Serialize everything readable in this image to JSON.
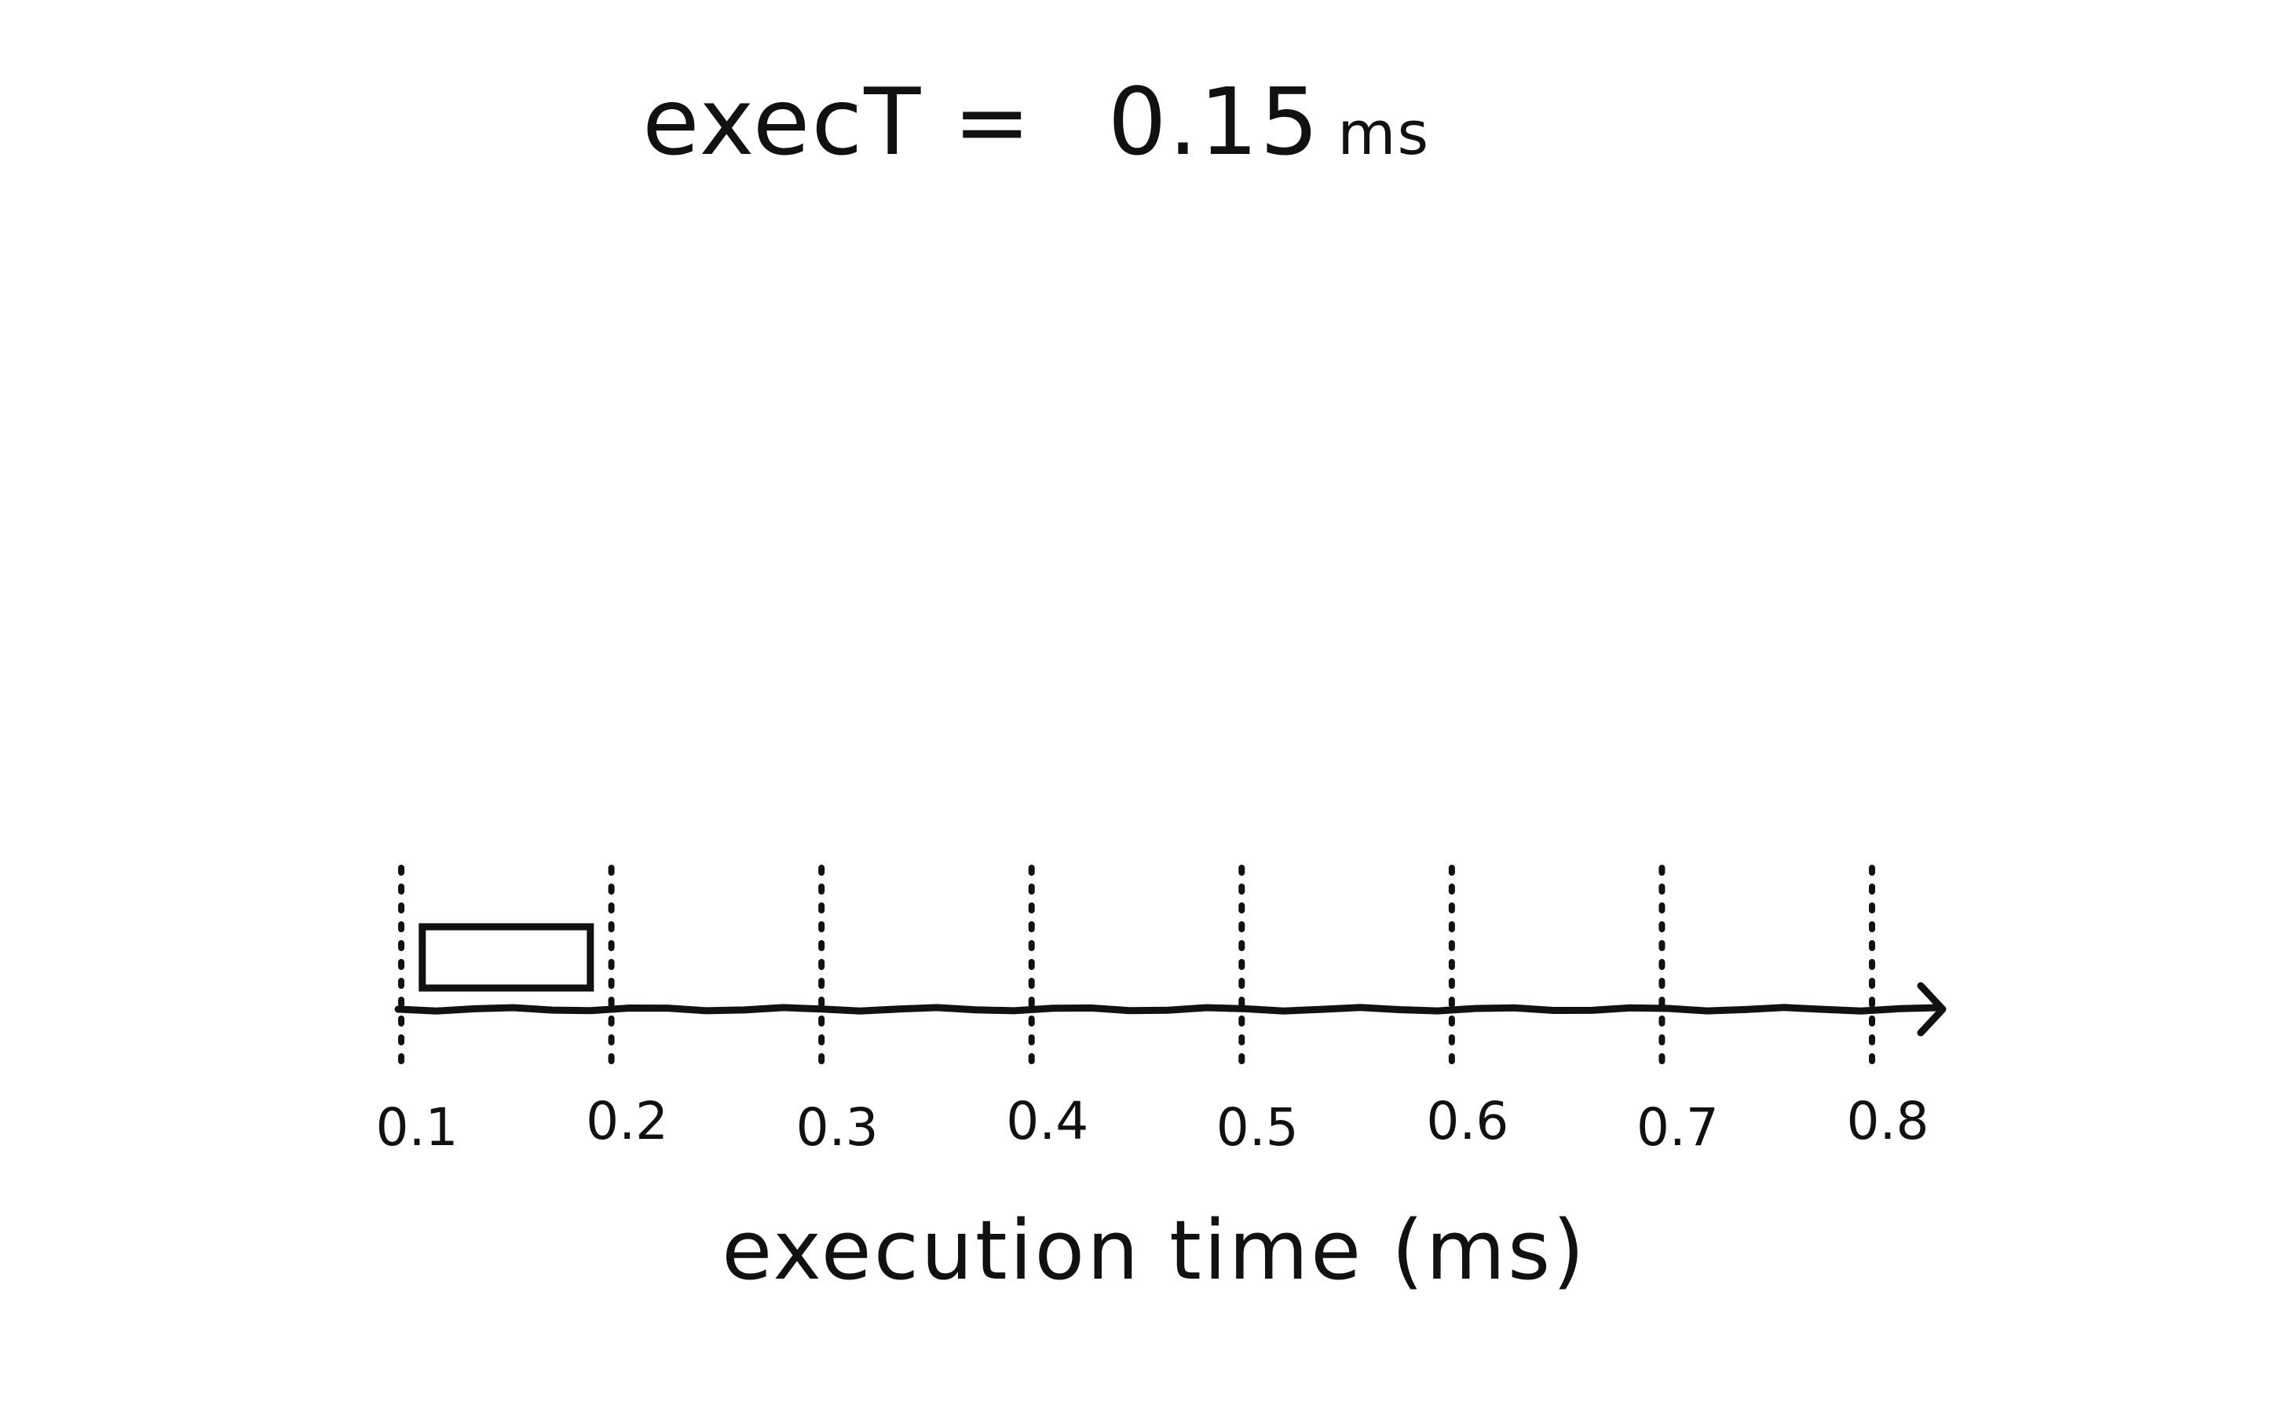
{
  "heading": {
    "label": "execT =",
    "value": "0.15",
    "unit": "ms"
  },
  "axis": {
    "label": "execution time (ms)",
    "ticks": [
      "0.1",
      "0.2",
      "0.3",
      "0.4",
      "0.5",
      "0.6",
      "0.7",
      "0.8"
    ],
    "min": 0.1,
    "max": 0.8
  },
  "bar": {
    "start": 0.11,
    "end": 0.19
  },
  "colors": {
    "ink": "#111111",
    "background": "#ffffff"
  }
}
